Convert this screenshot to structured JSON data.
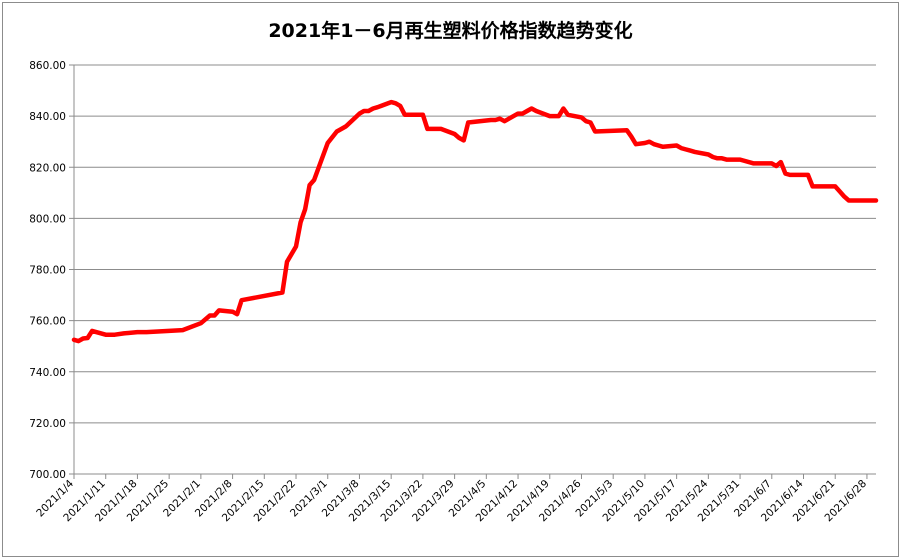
{
  "chart_data": {
    "type": "line",
    "title": "2021年1－6月再生塑料价格指数趋势变化",
    "xlabel": "",
    "ylabel": "",
    "ylim": [
      700,
      860
    ],
    "y_ticks": [
      "700.00",
      "720.00",
      "740.00",
      "760.00",
      "780.00",
      "800.00",
      "820.00",
      "840.00",
      "860.00"
    ],
    "x_tick_labels": [
      "2021/1/4",
      "2021/1/11",
      "2021/1/18",
      "2021/1/25",
      "2021/2/1",
      "2021/2/8",
      "2021/2/15",
      "2021/2/22",
      "2021/3/1",
      "2021/3/8",
      "2021/3/15",
      "2021/3/22",
      "2021/3/29",
      "2021/4/5",
      "2021/4/12",
      "2021/4/19",
      "2021/4/26",
      "2021/5/3",
      "2021/5/10",
      "2021/5/17",
      "2021/5/24",
      "2021/5/31",
      "2021/6/7",
      "2021/6/14",
      "2021/6/21",
      "2021/6/28"
    ],
    "grid": "horizontal",
    "line_color": "#ff0000",
    "series": [
      {
        "x": [
          "2021/1/4",
          "2021/1/5",
          "2021/1/6",
          "2021/1/7",
          "2021/1/8",
          "2021/1/11",
          "2021/1/13",
          "2021/1/15",
          "2021/1/18",
          "2021/1/20",
          "2021/1/25",
          "2021/1/28",
          "2021/2/1",
          "2021/2/3",
          "2021/2/4",
          "2021/2/5",
          "2021/2/8",
          "2021/2/9",
          "2021/2/10",
          "2021/2/19",
          "2021/2/20",
          "2021/2/22",
          "2021/2/23",
          "2021/2/24",
          "2021/2/25",
          "2021/2/26",
          "2021/3/1",
          "2021/3/3",
          "2021/3/5",
          "2021/3/8",
          "2021/3/9",
          "2021/3/10",
          "2021/3/11",
          "2021/3/12",
          "2021/3/15",
          "2021/3/16",
          "2021/3/17",
          "2021/3/18",
          "2021/3/19",
          "2021/3/22",
          "2021/3/23",
          "2021/3/25",
          "2021/3/26",
          "2021/3/29",
          "2021/3/30",
          "2021/3/31",
          "2021/4/1",
          "2021/4/6",
          "2021/4/7",
          "2021/4/8",
          "2021/4/9",
          "2021/4/12",
          "2021/4/13",
          "2021/4/14",
          "2021/4/15",
          "2021/4/16",
          "2021/4/19",
          "2021/4/20",
          "2021/4/21",
          "2021/4/22",
          "2021/4/23",
          "2021/4/26",
          "2021/4/27",
          "2021/4/28",
          "2021/4/29",
          "2021/5/6",
          "2021/5/7",
          "2021/5/8",
          "2021/5/10",
          "2021/5/11",
          "2021/5/12",
          "2021/5/13",
          "2021/5/14",
          "2021/5/17",
          "2021/5/18",
          "2021/5/19",
          "2021/5/20",
          "2021/5/21",
          "2021/5/24",
          "2021/5/25",
          "2021/5/26",
          "2021/5/27",
          "2021/5/28",
          "2021/5/31",
          "2021/6/1",
          "2021/6/3",
          "2021/6/4",
          "2021/6/7",
          "2021/6/8",
          "2021/6/9",
          "2021/6/10",
          "2021/6/11",
          "2021/6/15",
          "2021/6/16",
          "2021/6/17",
          "2021/6/21",
          "2021/6/22",
          "2021/6/23",
          "2021/6/24",
          "2021/6/25",
          "2021/6/28",
          "2021/6/30"
        ],
        "values": [
          752.5,
          752.0,
          753.0,
          753.2,
          756.0,
          754.5,
          754.5,
          755.0,
          755.5,
          755.5,
          756.0,
          756.3,
          759.0,
          762.0,
          762.0,
          764.0,
          763.5,
          762.5,
          768.0,
          771.0,
          783.0,
          789.0,
          798.5,
          803.5,
          813.0,
          815.0,
          829.5,
          834.0,
          836.0,
          841.0,
          842.0,
          842.0,
          843.0,
          843.5,
          845.5,
          845.0,
          844.0,
          840.5,
          840.5,
          840.5,
          835.0,
          835.0,
          835.0,
          833.0,
          831.5,
          830.5,
          837.5,
          838.5,
          838.5,
          839.0,
          838.0,
          841.0,
          841.0,
          842.0,
          843.0,
          842.0,
          840.0,
          840.0,
          840.0,
          843.0,
          840.5,
          839.5,
          838.0,
          837.5,
          834.0,
          834.5,
          832.0,
          829.0,
          829.5,
          830.0,
          829.0,
          828.5,
          828.0,
          828.5,
          827.5,
          827.0,
          826.5,
          826.0,
          825.0,
          824.0,
          823.5,
          823.5,
          823.0,
          823.0,
          822.5,
          821.5,
          821.5,
          821.5,
          820.5,
          822.0,
          817.5,
          817.0,
          817.0,
          812.5,
          812.5,
          812.5,
          810.5,
          808.5,
          807.0,
          807.0,
          807.0,
          807.0
        ]
      }
    ]
  }
}
